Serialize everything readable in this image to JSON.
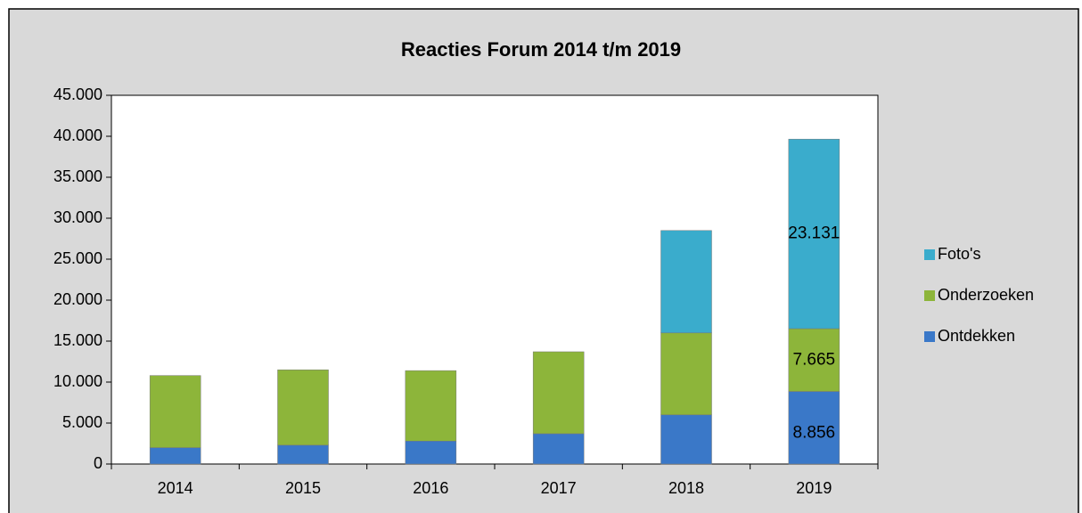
{
  "chart_data": {
    "type": "stacked_bar",
    "title": "Reacties Forum 2014 t/m 2019",
    "categories": [
      "2014",
      "2015",
      "2016",
      "2017",
      "2018",
      "2019"
    ],
    "series": [
      {
        "name": "Ontdekken",
        "color": "#3a78c8",
        "values": [
          2000,
          2300,
          2800,
          3700,
          6000,
          8856
        ],
        "value_labels": [
          null,
          null,
          null,
          null,
          null,
          "8.856"
        ]
      },
      {
        "name": "Onderzoeken",
        "color": "#8db53a",
        "values": [
          8800,
          9200,
          8600,
          10000,
          10000,
          7665
        ],
        "value_labels": [
          null,
          null,
          null,
          null,
          null,
          "7.665"
        ]
      },
      {
        "name": "Foto's",
        "color": "#3aaccc",
        "values": [
          0,
          0,
          0,
          0,
          12500,
          23131
        ],
        "value_labels": [
          null,
          null,
          null,
          null,
          null,
          "23.131"
        ]
      }
    ],
    "ylim": [
      0,
      45000
    ],
    "yticks": [
      0,
      {
        "value": 5000,
        "label": "5.000"
      },
      {
        "value": 10000,
        "label": "10.000"
      },
      {
        "value": 15000,
        "label": "15.000"
      },
      {
        "value": 20000,
        "label": "20.000"
      },
      {
        "value": 25000,
        "label": "25.000"
      },
      {
        "value": 30000,
        "label": "30.000"
      },
      {
        "value": 35000,
        "label": "35.000"
      },
      {
        "value": 40000,
        "label": "40.000"
      },
      {
        "value": 45000,
        "label": "45.000"
      }
    ],
    "legend": "right"
  }
}
